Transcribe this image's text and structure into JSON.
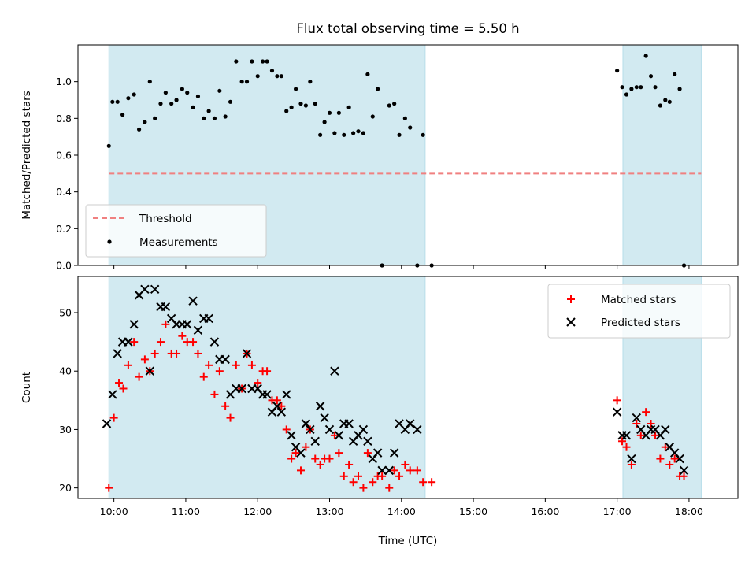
{
  "chart_data": [
    {
      "type": "scatter",
      "title": "Flux total observing time = 5.50 h",
      "xlabel": "",
      "ylabel": "Matched/Predicted stars",
      "xlim": [
        9.5,
        18.68
      ],
      "ylim": [
        0,
        1.2
      ],
      "yticks": [
        0.0,
        0.2,
        0.4,
        0.6,
        0.8,
        1.0
      ],
      "ytick_labels": [
        "0.0",
        "0.2",
        "0.4",
        "0.6",
        "0.8",
        "1.0"
      ],
      "shaded_spans": [
        [
          9.93,
          14.33
        ],
        [
          17.08,
          18.17
        ]
      ],
      "shade_color": "#add8e6",
      "threshold": {
        "label": "Threshold",
        "value": 0.5,
        "x_range": [
          9.93,
          18.17
        ],
        "color": "#f08080"
      },
      "legend": {
        "position": "lower-left",
        "entries": [
          "Threshold",
          "Measurements"
        ]
      },
      "series": [
        {
          "name": "Measurements",
          "color": "#000000",
          "points": [
            [
              9.93,
              0.65
            ],
            [
              9.98,
              0.89
            ],
            [
              10.05,
              0.89
            ],
            [
              10.12,
              0.82
            ],
            [
              10.2,
              0.91
            ],
            [
              10.28,
              0.93
            ],
            [
              10.35,
              0.74
            ],
            [
              10.43,
              0.78
            ],
            [
              10.5,
              1.0
            ],
            [
              10.57,
              0.8
            ],
            [
              10.65,
              0.88
            ],
            [
              10.72,
              0.94
            ],
            [
              10.8,
              0.88
            ],
            [
              10.87,
              0.9
            ],
            [
              10.95,
              0.96
            ],
            [
              11.02,
              0.94
            ],
            [
              11.1,
              0.86
            ],
            [
              11.17,
              0.92
            ],
            [
              11.25,
              0.8
            ],
            [
              11.32,
              0.84
            ],
            [
              11.4,
              0.8
            ],
            [
              11.47,
              0.95
            ],
            [
              11.55,
              0.81
            ],
            [
              11.62,
              0.89
            ],
            [
              11.7,
              1.11
            ],
            [
              11.78,
              1.0
            ],
            [
              11.85,
              1.0
            ],
            [
              11.92,
              1.11
            ],
            [
              12.0,
              1.03
            ],
            [
              12.07,
              1.11
            ],
            [
              12.13,
              1.11
            ],
            [
              12.2,
              1.06
            ],
            [
              12.27,
              1.03
            ],
            [
              12.33,
              1.03
            ],
            [
              12.4,
              0.84
            ],
            [
              12.47,
              0.86
            ],
            [
              12.53,
              0.96
            ],
            [
              12.6,
              0.88
            ],
            [
              12.67,
              0.87
            ],
            [
              12.73,
              1.0
            ],
            [
              12.8,
              0.88
            ],
            [
              12.87,
              0.71
            ],
            [
              12.93,
              0.78
            ],
            [
              13.0,
              0.83
            ],
            [
              13.07,
              0.72
            ],
            [
              13.13,
              0.83
            ],
            [
              13.2,
              0.71
            ],
            [
              13.27,
              0.86
            ],
            [
              13.33,
              0.72
            ],
            [
              13.4,
              0.73
            ],
            [
              13.47,
              0.72
            ],
            [
              13.53,
              1.04
            ],
            [
              13.6,
              0.81
            ],
            [
              13.67,
              0.96
            ],
            [
              13.73,
              0.0
            ],
            [
              13.83,
              0.87
            ],
            [
              13.9,
              0.88
            ],
            [
              13.97,
              0.71
            ],
            [
              14.05,
              0.8
            ],
            [
              14.12,
              0.75
            ],
            [
              14.22,
              0.0
            ],
            [
              14.3,
              0.71
            ],
            [
              14.42,
              0.0
            ],
            [
              17.0,
              1.06
            ],
            [
              17.07,
              0.97
            ],
            [
              17.13,
              0.93
            ],
            [
              17.2,
              0.96
            ],
            [
              17.27,
              0.97
            ],
            [
              17.33,
              0.97
            ],
            [
              17.4,
              1.14
            ],
            [
              17.47,
              1.03
            ],
            [
              17.53,
              0.97
            ],
            [
              17.6,
              0.87
            ],
            [
              17.67,
              0.9
            ],
            [
              17.73,
              0.89
            ],
            [
              17.8,
              1.04
            ],
            [
              17.87,
              0.96
            ],
            [
              17.93,
              0.0
            ]
          ]
        }
      ]
    },
    {
      "type": "scatter",
      "title": "",
      "xlabel": "Time (UTC)",
      "ylabel": "Count",
      "xlim": [
        9.5,
        18.68
      ],
      "ylim": [
        18.2,
        56.2
      ],
      "xticks": [
        10,
        11,
        12,
        13,
        14,
        15,
        16,
        17,
        18
      ],
      "xtick_labels": [
        "10:00",
        "11:00",
        "12:00",
        "13:00",
        "14:00",
        "15:00",
        "16:00",
        "17:00",
        "18:00"
      ],
      "yticks": [
        20,
        30,
        40,
        50
      ],
      "ytick_labels": [
        "20",
        "30",
        "40",
        "50"
      ],
      "shaded_spans": [
        [
          9.93,
          14.33
        ],
        [
          17.08,
          18.17
        ]
      ],
      "shade_color": "#add8e6",
      "legend": {
        "position": "upper-right",
        "entries": [
          "Matched stars",
          "Predicted stars"
        ]
      },
      "series": [
        {
          "name": "Matched stars",
          "marker": "plus",
          "color": "#ff0000",
          "points": [
            [
              9.93,
              20
            ],
            [
              10.0,
              32
            ],
            [
              10.07,
              38
            ],
            [
              10.13,
              37
            ],
            [
              10.2,
              41
            ],
            [
              10.28,
              45
            ],
            [
              10.35,
              39
            ],
            [
              10.43,
              42
            ],
            [
              10.5,
              40
            ],
            [
              10.57,
              43
            ],
            [
              10.65,
              45
            ],
            [
              10.72,
              48
            ],
            [
              10.8,
              43
            ],
            [
              10.87,
              43
            ],
            [
              10.95,
              46
            ],
            [
              11.02,
              45
            ],
            [
              11.1,
              45
            ],
            [
              11.17,
              43
            ],
            [
              11.25,
              39
            ],
            [
              11.32,
              41
            ],
            [
              11.4,
              36
            ],
            [
              11.47,
              40
            ],
            [
              11.55,
              34
            ],
            [
              11.62,
              32
            ],
            [
              11.7,
              41
            ],
            [
              11.78,
              37
            ],
            [
              11.85,
              43
            ],
            [
              11.92,
              41
            ],
            [
              12.0,
              38
            ],
            [
              12.07,
              40
            ],
            [
              12.13,
              40
            ],
            [
              12.2,
              35
            ],
            [
              12.27,
              35
            ],
            [
              12.33,
              34
            ],
            [
              12.4,
              30
            ],
            [
              12.47,
              25
            ],
            [
              12.53,
              26
            ],
            [
              12.6,
              23
            ],
            [
              12.67,
              27
            ],
            [
              12.73,
              30
            ],
            [
              12.8,
              25
            ],
            [
              12.87,
              24
            ],
            [
              12.93,
              25
            ],
            [
              13.0,
              25
            ],
            [
              13.07,
              29
            ],
            [
              13.13,
              26
            ],
            [
              13.2,
              22
            ],
            [
              13.27,
              24
            ],
            [
              13.33,
              21
            ],
            [
              13.4,
              22
            ],
            [
              13.47,
              20
            ],
            [
              13.53,
              26
            ],
            [
              13.6,
              21
            ],
            [
              13.67,
              22
            ],
            [
              13.73,
              22
            ],
            [
              13.83,
              20
            ],
            [
              13.9,
              23
            ],
            [
              13.97,
              22
            ],
            [
              14.05,
              24
            ],
            [
              14.12,
              23
            ],
            [
              14.22,
              23
            ],
            [
              14.3,
              21
            ],
            [
              14.42,
              21
            ],
            [
              17.0,
              35
            ],
            [
              17.07,
              28
            ],
            [
              17.13,
              27
            ],
            [
              17.2,
              24
            ],
            [
              17.27,
              31
            ],
            [
              17.33,
              29
            ],
            [
              17.4,
              33
            ],
            [
              17.47,
              31
            ],
            [
              17.53,
              29
            ],
            [
              17.6,
              25
            ],
            [
              17.67,
              27
            ],
            [
              17.73,
              24
            ],
            [
              17.8,
              25
            ],
            [
              17.87,
              22
            ],
            [
              17.93,
              22
            ]
          ]
        },
        {
          "name": "Predicted stars",
          "marker": "x",
          "color": "#000000",
          "points": [
            [
              9.9,
              31
            ],
            [
              9.98,
              36
            ],
            [
              10.05,
              43
            ],
            [
              10.12,
              45
            ],
            [
              10.2,
              45
            ],
            [
              10.28,
              48
            ],
            [
              10.35,
              53
            ],
            [
              10.43,
              54
            ],
            [
              10.5,
              40
            ],
            [
              10.57,
              54
            ],
            [
              10.65,
              51
            ],
            [
              10.72,
              51
            ],
            [
              10.8,
              49
            ],
            [
              10.87,
              48
            ],
            [
              10.95,
              48
            ],
            [
              11.02,
              48
            ],
            [
              11.1,
              52
            ],
            [
              11.17,
              47
            ],
            [
              11.25,
              49
            ],
            [
              11.32,
              49
            ],
            [
              11.4,
              45
            ],
            [
              11.47,
              42
            ],
            [
              11.55,
              42
            ],
            [
              11.62,
              36
            ],
            [
              11.7,
              37
            ],
            [
              11.78,
              37
            ],
            [
              11.85,
              43
            ],
            [
              11.92,
              37
            ],
            [
              12.0,
              37
            ],
            [
              12.07,
              36
            ],
            [
              12.13,
              36
            ],
            [
              12.2,
              33
            ],
            [
              12.27,
              34
            ],
            [
              12.33,
              33
            ],
            [
              12.4,
              36
            ],
            [
              12.47,
              29
            ],
            [
              12.53,
              27
            ],
            [
              12.6,
              26
            ],
            [
              12.67,
              31
            ],
            [
              12.73,
              30
            ],
            [
              12.8,
              28
            ],
            [
              12.87,
              34
            ],
            [
              12.93,
              32
            ],
            [
              13.0,
              30
            ],
            [
              13.07,
              40
            ],
            [
              13.13,
              29
            ],
            [
              13.2,
              31
            ],
            [
              13.27,
              31
            ],
            [
              13.33,
              28
            ],
            [
              13.4,
              29
            ],
            [
              13.47,
              30
            ],
            [
              13.53,
              28
            ],
            [
              13.6,
              25
            ],
            [
              13.67,
              26
            ],
            [
              13.73,
              23
            ],
            [
              13.83,
              23
            ],
            [
              13.9,
              26
            ],
            [
              13.97,
              31
            ],
            [
              14.05,
              30
            ],
            [
              14.12,
              31
            ],
            [
              14.22,
              30
            ],
            [
              17.0,
              33
            ],
            [
              17.07,
              29
            ],
            [
              17.13,
              29
            ],
            [
              17.2,
              25
            ],
            [
              17.27,
              32
            ],
            [
              17.33,
              30
            ],
            [
              17.4,
              29
            ],
            [
              17.47,
              30
            ],
            [
              17.53,
              30
            ],
            [
              17.6,
              29
            ],
            [
              17.67,
              30
            ],
            [
              17.73,
              27
            ],
            [
              17.8,
              26
            ],
            [
              17.87,
              25
            ],
            [
              17.93,
              23
            ]
          ]
        }
      ]
    }
  ]
}
